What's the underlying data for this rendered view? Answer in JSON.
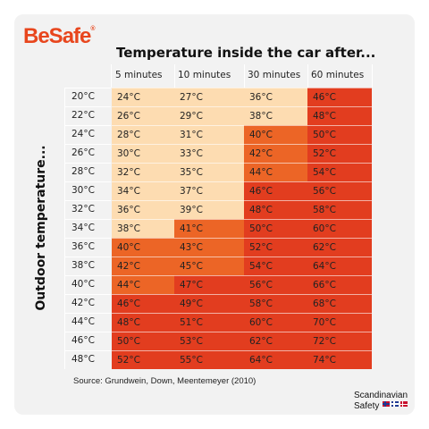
{
  "brand": {
    "logo_text": "BeSafe",
    "logo_mark": "®",
    "logo_color": "#e8461d"
  },
  "footer": {
    "source": "Source: Grundwein, Down, Meentemeyer (2010)",
    "brand_line1": "Scandinavian",
    "brand_line2": "Safety",
    "flags": [
      "norway-flag-icon",
      "sweden-flag-icon",
      "denmark-flag-icon"
    ]
  },
  "colors": {
    "light": "#fddcb1",
    "medium": "#ec6526",
    "hot": "#e23d1f",
    "background": "#f2f2f2"
  },
  "chart_data": {
    "type": "table",
    "title": "Temperature inside the car after...",
    "ylabel": "Outdoor temperature...",
    "columns": [
      "5 minutes",
      "10 minutes",
      "30 minutes",
      "60 minutes"
    ],
    "rows": [
      "20°C",
      "22°C",
      "24°C",
      "26°C",
      "28°C",
      "30°C",
      "32°C",
      "34°C",
      "36°C",
      "38°C",
      "40°C",
      "42°C",
      "44°C",
      "46°C",
      "48°C"
    ],
    "values": [
      [
        "24°C",
        "27°C",
        "36°C",
        "46°C"
      ],
      [
        "26°C",
        "29°C",
        "38°C",
        "48°C"
      ],
      [
        "28°C",
        "31°C",
        "40°C",
        "50°C"
      ],
      [
        "30°C",
        "33°C",
        "42°C",
        "52°C"
      ],
      [
        "32°C",
        "35°C",
        "44°C",
        "54°C"
      ],
      [
        "34°C",
        "37°C",
        "46°C",
        "56°C"
      ],
      [
        "36°C",
        "39°C",
        "48°C",
        "58°C"
      ],
      [
        "38°C",
        "41°C",
        "50°C",
        "60°C"
      ],
      [
        "40°C",
        "43°C",
        "52°C",
        "62°C"
      ],
      [
        "42°C",
        "45°C",
        "54°C",
        "64°C"
      ],
      [
        "44°C",
        "47°C",
        "56°C",
        "66°C"
      ],
      [
        "46°C",
        "49°C",
        "58°C",
        "68°C"
      ],
      [
        "48°C",
        "51°C",
        "60°C",
        "70°C"
      ],
      [
        "50°C",
        "53°C",
        "62°C",
        "72°C"
      ],
      [
        "52°C",
        "55°C",
        "64°C",
        "74°C"
      ]
    ],
    "color_bands": [
      {
        "max_exclusive": 40,
        "color": "light"
      },
      {
        "max_exclusive": 46,
        "color": "medium"
      },
      {
        "max_exclusive": 1000,
        "color": "hot"
      }
    ]
  }
}
